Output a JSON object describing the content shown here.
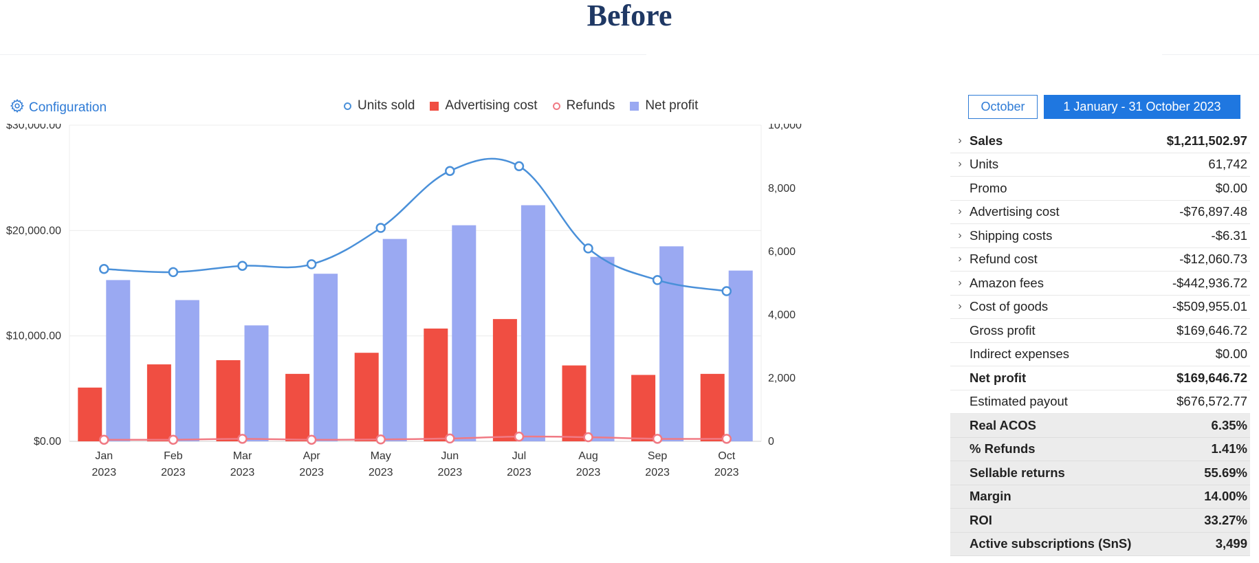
{
  "page_title": "Before",
  "config": {
    "label": "Configuration",
    "icon": "gear-icon"
  },
  "legend": [
    {
      "label": "Units sold",
      "shape": "circle",
      "color": "#4a90d9"
    },
    {
      "label": "Advertising cost",
      "shape": "square",
      "color": "#f04e42"
    },
    {
      "label": "Refunds",
      "shape": "circle",
      "color": "#f07a84"
    },
    {
      "label": "Net profit",
      "shape": "square",
      "color": "#9aa9f2"
    }
  ],
  "date_buttons": {
    "month": "October",
    "range": "1 January - 31 October 2023"
  },
  "colors": {
    "units": "#4a90d9",
    "advertising": "#f04e42",
    "refunds": "#f07a84",
    "net_profit": "#9aa9f2",
    "accent": "#1f77e0"
  },
  "chart_data": {
    "type": "bar",
    "categories": [
      "Jan",
      "Feb",
      "Mar",
      "Apr",
      "May",
      "Jun",
      "Jul",
      "Aug",
      "Sep",
      "Oct"
    ],
    "category_years": [
      "2023",
      "2023",
      "2023",
      "2023",
      "2023",
      "2023",
      "2023",
      "2023",
      "2023",
      "2023"
    ],
    "left_axis": {
      "ticks": [
        "$0.00",
        "$10,000.00",
        "$20,000.00",
        "$30,000.00"
      ],
      "ylim": [
        0,
        30000
      ]
    },
    "right_axis": {
      "ticks": [
        "0",
        "2,000",
        "4,000",
        "6,000",
        "8,000",
        "10,000"
      ],
      "ylim": [
        0,
        10000
      ]
    },
    "series": [
      {
        "name": "Advertising cost",
        "type": "bar",
        "axis": "left",
        "values": [
          5100,
          7300,
          7700,
          6400,
          8400,
          10700,
          11600,
          7200,
          6300,
          6400
        ]
      },
      {
        "name": "Net profit",
        "type": "bar",
        "axis": "left",
        "values": [
          15300,
          13400,
          11000,
          15900,
          19200,
          20500,
          22400,
          17500,
          18500,
          16200
        ]
      },
      {
        "name": "Units sold",
        "type": "line",
        "axis": "right",
        "values": [
          5450,
          5350,
          5550,
          5600,
          6750,
          8550,
          8700,
          6100,
          5100,
          4750
        ]
      },
      {
        "name": "Refunds",
        "type": "line",
        "axis": "right",
        "values": [
          50,
          50,
          80,
          50,
          60,
          90,
          150,
          130,
          80,
          80
        ]
      }
    ],
    "grid": true,
    "legend_position": "top-center"
  },
  "stats": [
    {
      "label": "Sales",
      "value": "$1,211,502.97",
      "expandable": true,
      "bold": true,
      "shaded": false
    },
    {
      "label": "Units",
      "value": "61,742",
      "expandable": true,
      "bold": false,
      "shaded": false
    },
    {
      "label": "Promo",
      "value": "$0.00",
      "expandable": false,
      "bold": false,
      "shaded": false
    },
    {
      "label": "Advertising cost",
      "value": "-$76,897.48",
      "expandable": true,
      "bold": false,
      "shaded": false
    },
    {
      "label": "Shipping costs",
      "value": "-$6.31",
      "expandable": true,
      "bold": false,
      "shaded": false
    },
    {
      "label": "Refund cost",
      "value": "-$12,060.73",
      "expandable": true,
      "bold": false,
      "shaded": false
    },
    {
      "label": "Amazon fees",
      "value": "-$442,936.72",
      "expandable": true,
      "bold": false,
      "shaded": false
    },
    {
      "label": "Cost of goods",
      "value": "-$509,955.01",
      "expandable": true,
      "bold": false,
      "shaded": false
    },
    {
      "label": "Gross profit",
      "value": "$169,646.72",
      "expandable": false,
      "bold": false,
      "shaded": false
    },
    {
      "label": "Indirect expenses",
      "value": "$0.00",
      "expandable": false,
      "bold": false,
      "shaded": false
    },
    {
      "label": "Net profit",
      "value": "$169,646.72",
      "expandable": false,
      "bold": true,
      "shaded": false
    },
    {
      "label": "Estimated payout",
      "value": "$676,572.77",
      "expandable": false,
      "bold": false,
      "shaded": false
    },
    {
      "label": "Real ACOS",
      "value": "6.35%",
      "expandable": false,
      "bold": true,
      "shaded": true
    },
    {
      "label": "% Refunds",
      "value": "1.41%",
      "expandable": false,
      "bold": true,
      "shaded": true
    },
    {
      "label": "Sellable returns",
      "value": "55.69%",
      "expandable": false,
      "bold": true,
      "shaded": true
    },
    {
      "label": "Margin",
      "value": "14.00%",
      "expandable": false,
      "bold": true,
      "shaded": true
    },
    {
      "label": "ROI",
      "value": "33.27%",
      "expandable": false,
      "bold": true,
      "shaded": true
    },
    {
      "label": "Active subscriptions (SnS)",
      "value": "3,499",
      "expandable": false,
      "bold": true,
      "shaded": true
    }
  ]
}
